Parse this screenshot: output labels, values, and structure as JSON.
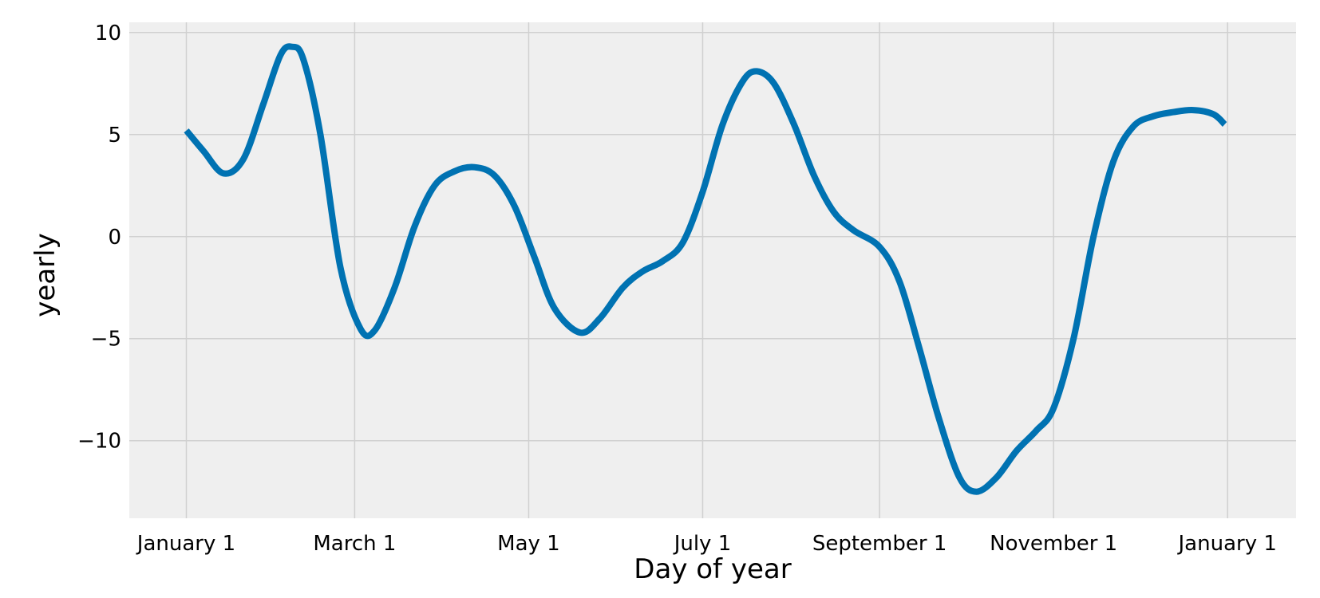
{
  "chart_data": {
    "type": "line",
    "title": "",
    "xlabel": "Day of year",
    "ylabel": "yearly",
    "xlim": [
      "2017-12-12",
      "2019-01-25"
    ],
    "ylim": [
      -13.8,
      10.5
    ],
    "grid": true,
    "legend": "none",
    "colors": {
      "line": "#0072b2",
      "plot_background": "#efefef",
      "grid": "#d0d0d0",
      "page_background": "#ffffff"
    },
    "x_ticks": [
      {
        "date": "2018-01-01",
        "label": "January 1"
      },
      {
        "date": "2018-03-01",
        "label": "March 1"
      },
      {
        "date": "2018-05-01",
        "label": "May 1"
      },
      {
        "date": "2018-07-01",
        "label": "July 1"
      },
      {
        "date": "2018-09-01",
        "label": "September 1"
      },
      {
        "date": "2018-11-01",
        "label": "November 1"
      },
      {
        "date": "2019-01-01",
        "label": "January 1"
      }
    ],
    "y_ticks": [
      {
        "value": 10,
        "label": "10"
      },
      {
        "value": 5,
        "label": "5"
      },
      {
        "value": 0,
        "label": "0"
      },
      {
        "value": -5,
        "label": "−5"
      },
      {
        "value": -10,
        "label": "−10"
      }
    ],
    "series": [
      {
        "points": [
          {
            "x": "2018-01-01",
            "y": 5.2
          },
          {
            "x": "2018-01-07",
            "y": 4.2
          },
          {
            "x": "2018-01-14",
            "y": 3.1
          },
          {
            "x": "2018-01-21",
            "y": 3.8
          },
          {
            "x": "2018-01-28",
            "y": 6.5
          },
          {
            "x": "2018-02-03",
            "y": 8.9
          },
          {
            "x": "2018-02-07",
            "y": 9.3
          },
          {
            "x": "2018-02-11",
            "y": 8.7
          },
          {
            "x": "2018-02-17",
            "y": 5.0
          },
          {
            "x": "2018-02-24",
            "y": -1.5
          },
          {
            "x": "2018-03-03",
            "y": -4.5
          },
          {
            "x": "2018-03-08",
            "y": -4.6
          },
          {
            "x": "2018-03-15",
            "y": -2.5
          },
          {
            "x": "2018-03-22",
            "y": 0.5
          },
          {
            "x": "2018-03-29",
            "y": 2.5
          },
          {
            "x": "2018-04-05",
            "y": 3.2
          },
          {
            "x": "2018-04-12",
            "y": 3.4
          },
          {
            "x": "2018-04-19",
            "y": 3.0
          },
          {
            "x": "2018-04-26",
            "y": 1.5
          },
          {
            "x": "2018-05-03",
            "y": -1.0
          },
          {
            "x": "2018-05-10",
            "y": -3.5
          },
          {
            "x": "2018-05-19",
            "y": -4.7
          },
          {
            "x": "2018-05-26",
            "y": -4.0
          },
          {
            "x": "2018-06-03",
            "y": -2.5
          },
          {
            "x": "2018-06-10",
            "y": -1.7
          },
          {
            "x": "2018-06-17",
            "y": -1.2
          },
          {
            "x": "2018-06-24",
            "y": -0.3
          },
          {
            "x": "2018-07-01",
            "y": 2.2
          },
          {
            "x": "2018-07-08",
            "y": 5.5
          },
          {
            "x": "2018-07-15",
            "y": 7.6
          },
          {
            "x": "2018-07-20",
            "y": 8.1
          },
          {
            "x": "2018-07-26",
            "y": 7.5
          },
          {
            "x": "2018-08-02",
            "y": 5.5
          },
          {
            "x": "2018-08-09",
            "y": 3.0
          },
          {
            "x": "2018-08-16",
            "y": 1.2
          },
          {
            "x": "2018-08-23",
            "y": 0.3
          },
          {
            "x": "2018-09-01",
            "y": -0.5
          },
          {
            "x": "2018-09-08",
            "y": -2.2
          },
          {
            "x": "2018-09-15",
            "y": -5.5
          },
          {
            "x": "2018-09-22",
            "y": -9.0
          },
          {
            "x": "2018-09-29",
            "y": -11.8
          },
          {
            "x": "2018-10-05",
            "y": -12.5
          },
          {
            "x": "2018-10-12",
            "y": -11.8
          },
          {
            "x": "2018-10-19",
            "y": -10.5
          },
          {
            "x": "2018-10-26",
            "y": -9.5
          },
          {
            "x": "2018-11-01",
            "y": -8.4
          },
          {
            "x": "2018-11-08",
            "y": -5.0
          },
          {
            "x": "2018-11-15",
            "y": 0.0
          },
          {
            "x": "2018-11-22",
            "y": 3.7
          },
          {
            "x": "2018-11-29",
            "y": 5.4
          },
          {
            "x": "2018-12-06",
            "y": 5.9
          },
          {
            "x": "2018-12-13",
            "y": 6.1
          },
          {
            "x": "2018-12-20",
            "y": 6.2
          },
          {
            "x": "2018-12-27",
            "y": 6.0
          },
          {
            "x": "2018-12-31",
            "y": 5.5
          }
        ]
      }
    ]
  }
}
